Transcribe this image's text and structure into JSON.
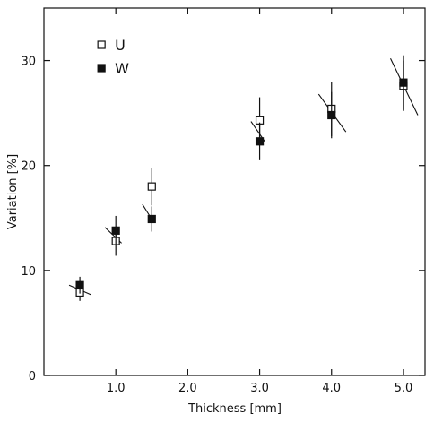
{
  "chart_data": {
    "type": "scatter",
    "xlabel": "Thickness [mm]",
    "ylabel": "Variation [%]",
    "xlim": [
      0.0,
      5.3
    ],
    "ylim": [
      0,
      35
    ],
    "xticks": [
      1.0,
      2.0,
      3.0,
      4.0,
      5.0
    ],
    "xtick_labels": [
      "1.0",
      "2.0",
      "3.0",
      "4.0",
      "5.0"
    ],
    "yticks": [
      0,
      10,
      20,
      30
    ],
    "ytick_labels": [
      "0",
      "10",
      "20",
      "30"
    ],
    "grid": false,
    "legend_position": "top-left",
    "series": [
      {
        "name": "U",
        "marker": "open-square",
        "color": "#111111",
        "points": [
          {
            "x": 0.5,
            "y": 7.9,
            "err": 0.8
          },
          {
            "x": 1.0,
            "y": 12.8,
            "err": 1.4
          },
          {
            "x": 1.5,
            "y": 18.0,
            "err": 1.8
          },
          {
            "x": 3.0,
            "y": 24.3,
            "err": 2.2
          },
          {
            "x": 4.0,
            "y": 25.4,
            "err": 2.6
          },
          {
            "x": 5.0,
            "y": 27.6,
            "err": 2.4
          }
        ]
      },
      {
        "name": "W",
        "marker": "filled-square",
        "color": "#111111",
        "points": [
          {
            "x": 0.5,
            "y": 8.6,
            "err": 0.8
          },
          {
            "x": 1.0,
            "y": 13.8,
            "err": 1.4
          },
          {
            "x": 1.5,
            "y": 14.9,
            "err": 1.2
          },
          {
            "x": 3.0,
            "y": 22.3,
            "err": 1.8
          },
          {
            "x": 4.0,
            "y": 24.8,
            "err": 2.2
          },
          {
            "x": 5.0,
            "y": 27.9,
            "err": 2.6
          }
        ]
      }
    ],
    "slope_segments": [
      {
        "x1": 0.35,
        "y1": 8.6,
        "x2": 0.65,
        "y2": 7.7
      },
      {
        "x1": 0.85,
        "y1": 14.1,
        "x2": 1.08,
        "y2": 12.6
      },
      {
        "x1": 1.37,
        "y1": 16.3,
        "x2": 1.48,
        "y2": 15.1
      },
      {
        "x1": 2.88,
        "y1": 24.2,
        "x2": 3.08,
        "y2": 22.2
      },
      {
        "x1": 3.82,
        "y1": 26.8,
        "x2": 4.2,
        "y2": 23.2
      },
      {
        "x1": 4.82,
        "y1": 30.2,
        "x2": 5.2,
        "y2": 24.8
      }
    ]
  }
}
